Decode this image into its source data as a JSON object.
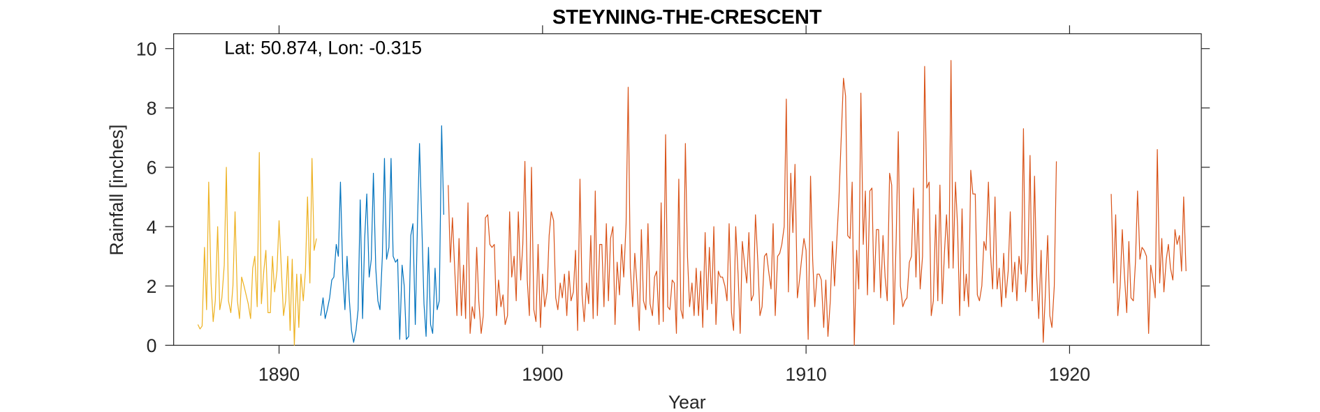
{
  "chart_data": {
    "type": "line",
    "title": "STEYNING-THE-CRESCENT",
    "annotation": "Lat: 50.874, Lon: -0.315",
    "x_label": "Year",
    "y_label": "Rainfall [inches]",
    "xlim": [
      1886,
      1925
    ],
    "ylim": [
      0,
      10.5
    ],
    "xticks": [
      1890,
      1900,
      1910,
      1920
    ],
    "yticks": [
      0,
      2,
      4,
      6,
      8,
      10
    ],
    "grid": false,
    "series": [
      {
        "color": "#EDB120",
        "x": [
          1886.92,
          1887.0,
          1887.08,
          1887.17,
          1887.25,
          1887.33,
          1887.42,
          1887.5,
          1887.58,
          1887.67,
          1887.75,
          1887.83,
          1887.92,
          1888.0,
          1888.08,
          1888.17,
          1888.25,
          1888.33,
          1888.42,
          1888.5,
          1888.58,
          1888.67,
          1888.75,
          1888.83,
          1888.92,
          1889.0,
          1889.08,
          1889.17,
          1889.25,
          1889.33,
          1889.42,
          1889.5,
          1889.58,
          1889.67,
          1889.75,
          1889.83,
          1889.92,
          1890.0,
          1890.08,
          1890.17,
          1890.25,
          1890.33,
          1890.42,
          1890.5,
          1890.58,
          1890.67,
          1890.75,
          1890.83,
          1890.92,
          1891.0,
          1891.08,
          1891.17,
          1891.25,
          1891.33,
          1891.42
        ],
        "values": [
          0.7,
          0.55,
          0.65,
          3.3,
          1.2,
          5.5,
          2.1,
          0.8,
          1.5,
          4.0,
          1.2,
          1.6,
          2.7,
          6.0,
          1.5,
          1.1,
          2.0,
          4.5,
          1.5,
          0.9,
          2.3,
          2.0,
          1.7,
          1.4,
          0.9,
          2.6,
          3.0,
          1.3,
          6.5,
          1.4,
          2.5,
          3.2,
          1.1,
          1.1,
          3.0,
          1.8,
          2.5,
          4.2,
          2.7,
          1.0,
          1.5,
          3.0,
          0.5,
          2.9,
          0.0,
          2.4,
          0.6,
          2.4,
          1.5,
          2.5,
          5.0,
          2.1,
          6.3,
          3.2,
          3.6
        ]
      },
      {
        "color": "#0072BD",
        "x": [
          1891.58,
          1891.67,
          1891.75,
          1891.83,
          1891.92,
          1892.0,
          1892.08,
          1892.17,
          1892.25,
          1892.33,
          1892.42,
          1892.5,
          1892.58,
          1892.67,
          1892.75,
          1892.83,
          1892.92,
          1893.0,
          1893.08,
          1893.17,
          1893.25,
          1893.33,
          1893.42,
          1893.5,
          1893.58,
          1893.67,
          1893.75,
          1893.83,
          1893.92,
          1894.0,
          1894.08,
          1894.17,
          1894.25,
          1894.33,
          1894.42,
          1894.5,
          1894.58,
          1894.67,
          1894.75,
          1894.83,
          1894.92,
          1895.0,
          1895.08,
          1895.17,
          1895.25,
          1895.33,
          1895.42,
          1895.5,
          1895.58,
          1895.67,
          1895.75,
          1895.83,
          1895.92,
          1896.0,
          1896.08,
          1896.17,
          1896.25
        ],
        "values": [
          1.0,
          1.6,
          0.9,
          1.2,
          1.6,
          2.2,
          2.3,
          3.4,
          3.0,
          5.5,
          2.4,
          1.2,
          3.0,
          1.5,
          0.5,
          0.1,
          0.5,
          1.2,
          4.9,
          0.9,
          3.6,
          5.1,
          2.3,
          2.9,
          5.8,
          2.6,
          1.5,
          1.2,
          3.0,
          6.3,
          2.9,
          3.3,
          6.3,
          3.0,
          2.8,
          2.9,
          0.2,
          2.7,
          2.0,
          0.2,
          0.3,
          3.7,
          4.1,
          0.7,
          4.0,
          6.8,
          4.0,
          1.4,
          0.3,
          3.3,
          0.7,
          0.4,
          2.6,
          1.2,
          1.5,
          7.4,
          4.4
        ]
      },
      {
        "color": "#D95319",
        "x": [
          1896.42,
          1896.5,
          1896.58,
          1896.67,
          1896.75,
          1896.83,
          1896.92,
          1897.0,
          1897.08,
          1897.17,
          1897.25,
          1897.33,
          1897.42,
          1897.5,
          1897.58,
          1897.67,
          1897.75,
          1897.83,
          1897.92,
          1898.0,
          1898.08,
          1898.17,
          1898.25,
          1898.33,
          1898.42,
          1898.5,
          1898.58,
          1898.67,
          1898.75,
          1898.83,
          1898.92,
          1899.0,
          1899.08,
          1899.17,
          1899.25,
          1899.33,
          1899.42,
          1899.5,
          1899.58,
          1899.67,
          1899.75,
          1899.83,
          1899.92,
          1900.0,
          1900.08,
          1900.17,
          1900.25,
          1900.33,
          1900.42,
          1900.5,
          1900.58,
          1900.67,
          1900.75,
          1900.83,
          1900.92,
          1901.0,
          1901.08,
          1901.17,
          1901.25,
          1901.33,
          1901.42,
          1901.5,
          1901.58,
          1901.67,
          1901.75,
          1901.83,
          1901.92,
          1902.0,
          1902.08,
          1902.17,
          1902.25,
          1902.33,
          1902.42,
          1902.5,
          1902.58,
          1902.67,
          1902.75,
          1902.83,
          1902.92,
          1903.0,
          1903.08,
          1903.17,
          1903.25,
          1903.33,
          1903.42,
          1903.5,
          1903.58,
          1903.67,
          1903.75,
          1903.83,
          1903.92,
          1904.0,
          1904.08,
          1904.17,
          1904.25,
          1904.33,
          1904.42,
          1904.5,
          1904.58,
          1904.67,
          1904.75,
          1904.83,
          1904.92,
          1905.0,
          1905.08,
          1905.17,
          1905.25,
          1905.33,
          1905.42,
          1905.5,
          1905.58,
          1905.67,
          1905.75,
          1905.83,
          1905.92,
          1906.0,
          1906.08,
          1906.17,
          1906.25,
          1906.33,
          1906.42,
          1906.5,
          1906.58,
          1906.67,
          1906.75,
          1906.83,
          1906.92,
          1907.0,
          1907.08,
          1907.17,
          1907.25,
          1907.33,
          1907.42,
          1907.5,
          1907.58,
          1907.67,
          1907.75,
          1907.83,
          1907.92,
          1908.0,
          1908.08,
          1908.17,
          1908.25,
          1908.33,
          1908.42,
          1908.5,
          1908.58,
          1908.67,
          1908.75,
          1908.83,
          1908.92,
          1909.0,
          1909.08,
          1909.17,
          1909.25,
          1909.33,
          1909.42,
          1909.5,
          1909.58,
          1909.67,
          1909.75,
          1909.83,
          1909.92,
          1910.0,
          1910.08,
          1910.17,
          1910.25,
          1910.33,
          1910.42,
          1910.5,
          1910.58,
          1910.67,
          1910.75,
          1910.83,
          1910.92,
          1911.0,
          1911.08,
          1911.17,
          1911.25,
          1911.33,
          1911.42,
          1911.5,
          1911.58,
          1911.67,
          1911.75,
          1911.83,
          1911.92,
          1912.0,
          1912.08,
          1912.17,
          1912.25,
          1912.33,
          1912.42,
          1912.5,
          1912.58,
          1912.67,
          1912.75,
          1912.83,
          1912.92,
          1913.0,
          1913.08,
          1913.17,
          1913.25,
          1913.33,
          1913.42,
          1913.5,
          1913.58,
          1913.67,
          1913.75,
          1913.83,
          1913.92,
          1914.0,
          1914.08,
          1914.17,
          1914.25,
          1914.33,
          1914.42,
          1914.5,
          1914.58,
          1914.67,
          1914.75,
          1914.83,
          1914.92,
          1915.0,
          1915.08,
          1915.17,
          1915.25,
          1915.33,
          1915.42,
          1915.5,
          1915.58,
          1915.67,
          1915.75,
          1915.83,
          1915.92,
          1916.0,
          1916.08,
          1916.17,
          1916.25,
          1916.33,
          1916.42,
          1916.5,
          1916.58,
          1916.67,
          1916.75,
          1916.83,
          1916.92,
          1917.0,
          1917.08,
          1917.17,
          1917.25,
          1917.33,
          1917.42,
          1917.5,
          1917.58,
          1917.67,
          1917.75,
          1917.83,
          1917.92,
          1918.0,
          1918.08,
          1918.17,
          1918.25,
          1918.33,
          1918.42,
          1918.5,
          1918.58,
          1918.67,
          1918.75,
          1918.83,
          1918.92,
          1919.0,
          1919.08,
          1919.17,
          1919.25,
          1919.33,
          1919.42,
          1919.5,
          1920.5,
          1921.58,
          1921.67,
          1921.75,
          1921.83,
          1921.92,
          1922.0,
          1922.08,
          1922.17,
          1922.25,
          1922.33,
          1922.42,
          1922.5,
          1922.58,
          1922.67,
          1922.75,
          1922.83,
          1922.92,
          1923.0,
          1923.08,
          1923.17,
          1923.25,
          1923.33,
          1923.42,
          1923.5,
          1923.58,
          1923.67,
          1923.75,
          1923.83,
          1923.92,
          1924.0,
          1924.08,
          1924.17,
          1924.25,
          1924.33,
          1924.42
        ],
        "values": [
          5.4,
          2.8,
          4.3,
          2.5,
          1.0,
          3.6,
          1.0,
          2.7,
          0.9,
          4.8,
          0.4,
          1.3,
          0.9,
          3.3,
          1.5,
          0.4,
          1.0,
          4.3,
          4.4,
          3.4,
          3.3,
          3.4,
          1.0,
          2.2,
          1.3,
          1.7,
          0.7,
          1.0,
          4.5,
          2.3,
          3.0,
          1.5,
          4.5,
          2.2,
          3.4,
          6.2,
          2.2,
          1.0,
          6.0,
          1.2,
          0.8,
          3.4,
          0.6,
          2.4,
          1.3,
          1.8,
          3.7,
          4.5,
          4.2,
          1.6,
          1.2,
          2.1,
          1.6,
          2.4,
          1.0,
          2.5,
          1.5,
          1.8,
          3.2,
          0.5,
          5.6,
          1.7,
          0.8,
          2.1,
          1.4,
          3.7,
          0.9,
          5.2,
          1.0,
          3.4,
          3.4,
          1.3,
          4.1,
          1.5,
          3.6,
          4.0,
          0.7,
          2.8,
          1.7,
          3.4,
          2.3,
          4.1,
          8.7,
          2.6,
          1.3,
          3.1,
          2.1,
          0.5,
          3.9,
          1.5,
          1.2,
          4.1,
          1.4,
          1.0,
          2.3,
          2.5,
          0.7,
          4.8,
          0.8,
          7.1,
          1.3,
          1.2,
          2.2,
          2.1,
          0.4,
          5.6,
          1.2,
          0.9,
          6.8,
          3.0,
          1.3,
          2.1,
          1.0,
          2.6,
          1.0,
          2.5,
          0.6,
          3.8,
          1.2,
          3.3,
          1.4,
          4.0,
          0.7,
          2.5,
          2.3,
          2.3,
          2.0,
          1.5,
          4.1,
          1.1,
          0.5,
          4.0,
          2.4,
          0.4,
          3.5,
          2.7,
          2.1,
          3.8,
          1.5,
          1.7,
          4.4,
          2.8,
          1.0,
          1.3,
          3.0,
          3.1,
          2.5,
          1.9,
          4.1,
          1.0,
          3.0,
          3.1,
          3.4,
          4.0,
          8.3,
          1.8,
          5.8,
          3.8,
          6.1,
          1.6,
          2.2,
          2.9,
          3.6,
          3.2,
          0.2,
          5.7,
          2.9,
          1.3,
          2.4,
          2.4,
          2.2,
          0.6,
          2.2,
          0.3,
          1.5,
          3.5,
          2.0,
          3.6,
          5.0,
          6.9,
          9.0,
          8.4,
          3.7,
          3.6,
          5.5,
          0.0,
          3.2,
          1.9,
          8.5,
          3.4,
          5.2,
          1.7,
          5.2,
          5.3,
          1.8,
          3.9,
          3.9,
          1.6,
          3.7,
          2.3,
          1.5,
          5.8,
          5.4,
          0.7,
          3.6,
          7.2,
          2.0,
          1.3,
          1.5,
          1.6,
          2.8,
          3.0,
          5.3,
          2.3,
          4.6,
          1.9,
          3.0,
          9.4,
          5.3,
          5.5,
          1.0,
          1.5,
          4.4,
          1.5,
          5.4,
          1.4,
          3.1,
          4.4,
          2.6,
          9.6,
          2.6,
          5.5,
          4.0,
          1.0,
          4.6,
          1.5,
          2.4,
          1.3,
          5.9,
          5.1,
          5.1,
          1.7,
          1.5,
          2.0,
          3.5,
          3.2,
          5.5,
          3.1,
          1.9,
          5.0,
          1.9,
          2.6,
          1.3,
          3.1,
          1.6,
          2.5,
          4.5,
          1.8,
          2.8,
          1.5,
          3.0,
          2.4,
          7.3,
          1.8,
          2.8,
          6.4,
          1.5,
          5.7,
          2.4,
          0.9,
          3.2,
          0.1,
          1.7,
          3.7,
          1.0,
          0.6,
          2.0,
          6.2,
          null,
          5.1,
          2.1,
          4.4,
          1.0,
          2.0,
          3.9,
          2.4,
          1.1,
          3.5,
          1.6,
          1.5,
          2.8,
          5.2,
          2.9,
          3.3,
          3.2,
          3.0,
          0.4,
          2.7,
          2.2,
          1.6,
          6.6,
          2.1,
          3.6,
          1.8,
          2.9,
          3.4,
          2.6,
          2.2,
          3.9,
          3.4,
          3.7,
          2.5,
          5.0,
          2.5
        ]
      }
    ]
  }
}
